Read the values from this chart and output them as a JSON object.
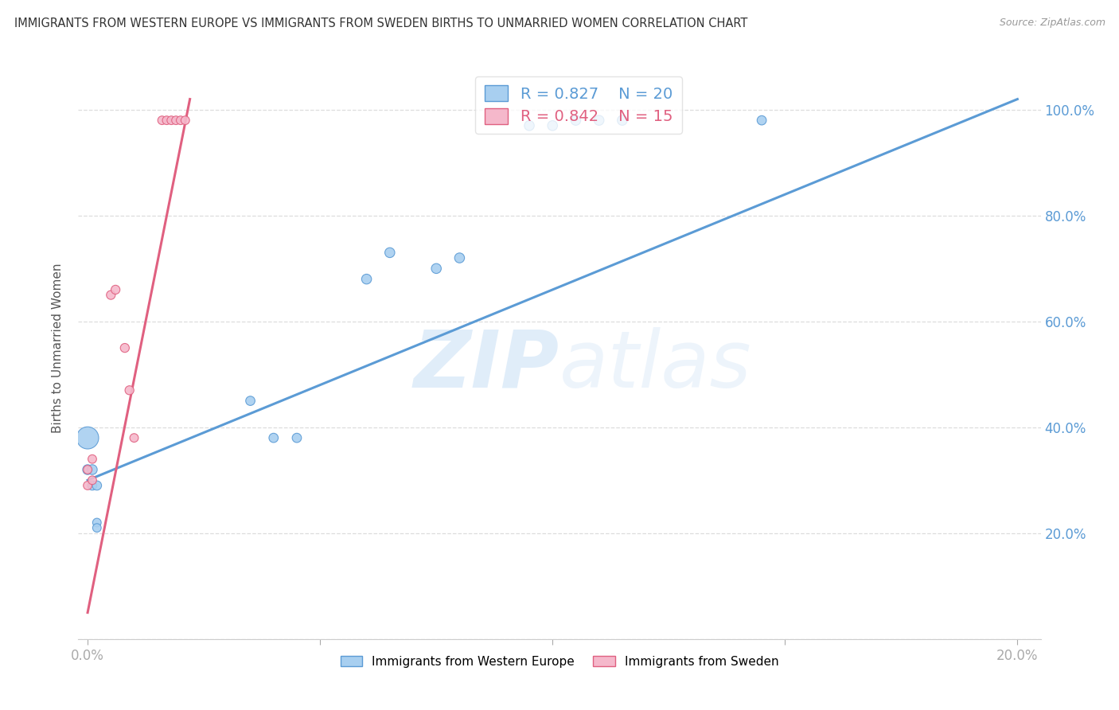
{
  "title": "IMMIGRANTS FROM WESTERN EUROPE VS IMMIGRANTS FROM SWEDEN BIRTHS TO UNMARRIED WOMEN CORRELATION CHART",
  "source": "Source: ZipAtlas.com",
  "ylabel": "Births to Unmarried Women",
  "watermark_zip": "ZIP",
  "watermark_atlas": "atlas",
  "blue_label": "Immigrants from Western Europe",
  "pink_label": "Immigrants from Sweden",
  "blue_R": 0.827,
  "blue_N": 20,
  "pink_R": 0.842,
  "pink_N": 15,
  "blue_color": "#A8CFF0",
  "pink_color": "#F5B8CB",
  "blue_line_color": "#5B9BD5",
  "pink_line_color": "#E06080",
  "blue_points_x": [
    0.0,
    0.0,
    0.001,
    0.001,
    0.002,
    0.002,
    0.002,
    0.035,
    0.04,
    0.045,
    0.06,
    0.065,
    0.075,
    0.08,
    0.095,
    0.1,
    0.105,
    0.11,
    0.115,
    0.145
  ],
  "blue_points_y": [
    0.38,
    0.32,
    0.32,
    0.29,
    0.29,
    0.22,
    0.21,
    0.45,
    0.38,
    0.38,
    0.68,
    0.73,
    0.7,
    0.72,
    0.97,
    0.97,
    0.98,
    0.98,
    0.98,
    0.98
  ],
  "blue_sizes": [
    400,
    80,
    80,
    70,
    70,
    60,
    60,
    70,
    70,
    70,
    80,
    80,
    80,
    80,
    80,
    80,
    80,
    80,
    80,
    70
  ],
  "pink_points_x": [
    0.0,
    0.0,
    0.001,
    0.001,
    0.005,
    0.006,
    0.008,
    0.009,
    0.01,
    0.016,
    0.017,
    0.018,
    0.019,
    0.02,
    0.021
  ],
  "pink_points_y": [
    0.32,
    0.29,
    0.34,
    0.3,
    0.65,
    0.66,
    0.55,
    0.47,
    0.38,
    0.98,
    0.98,
    0.98,
    0.98,
    0.98,
    0.98
  ],
  "pink_sizes": [
    60,
    60,
    60,
    60,
    65,
    65,
    65,
    65,
    60,
    60,
    60,
    60,
    60,
    60,
    60
  ],
  "blue_trendline_x": [
    0.0,
    0.2
  ],
  "blue_trendline_y": [
    0.3,
    1.02
  ],
  "pink_trendline_x": [
    0.0,
    0.022
  ],
  "pink_trendline_y": [
    0.05,
    1.02
  ],
  "xmin": -0.002,
  "xmax": 0.205,
  "ymin": 0.0,
  "ymax": 1.1,
  "xticks": [
    0.0,
    0.05,
    0.1,
    0.15,
    0.2
  ],
  "yticks": [
    0.0,
    0.2,
    0.4,
    0.6,
    0.8,
    1.0
  ],
  "ytick_labels_right": [
    "",
    "20.0%",
    "40.0%",
    "60.0%",
    "80.0%",
    "100.0%"
  ],
  "background_color": "#FFFFFF",
  "grid_color": "#DDDDDD"
}
